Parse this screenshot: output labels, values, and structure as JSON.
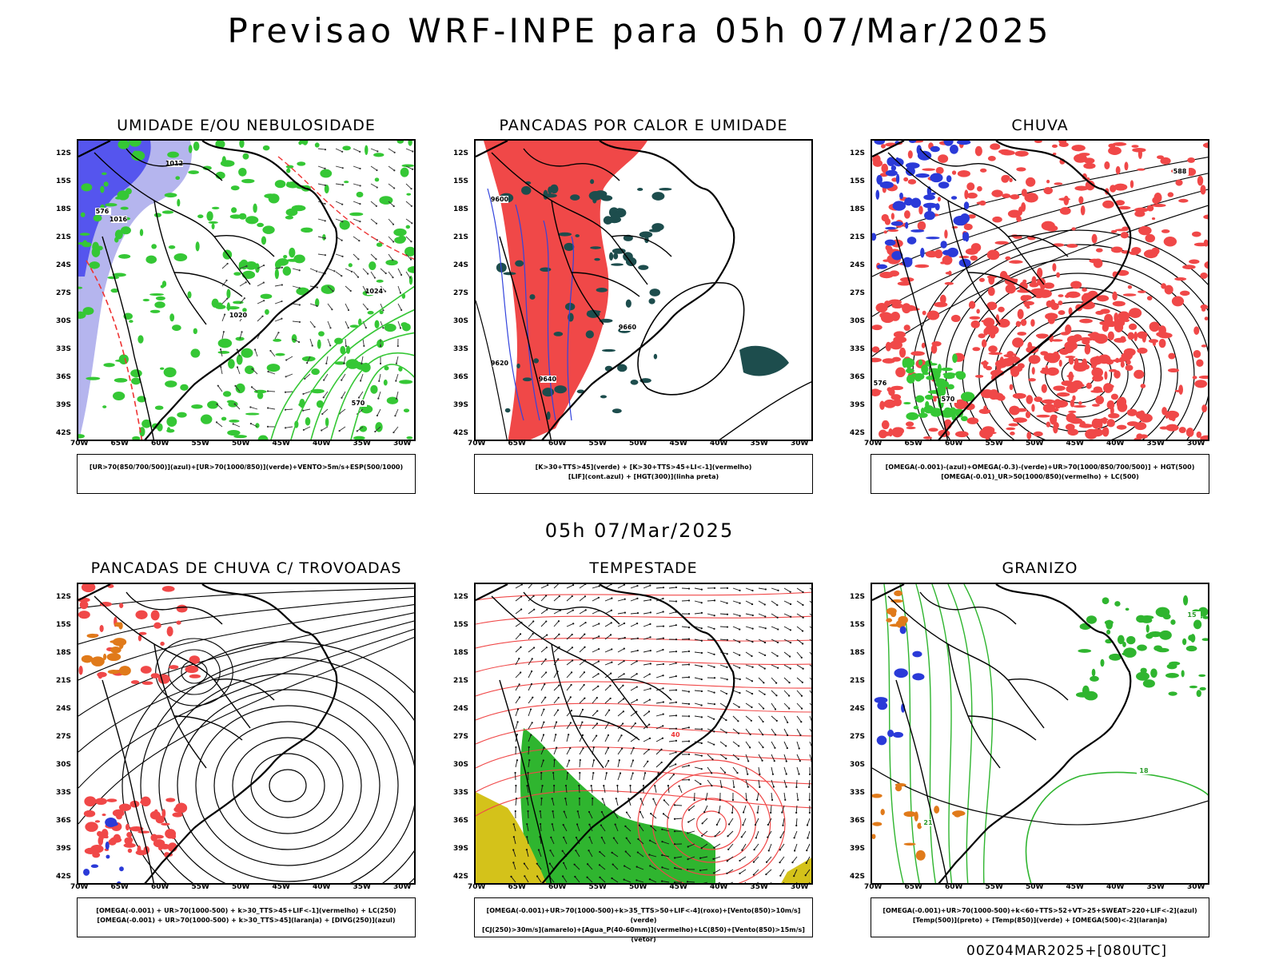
{
  "title": "Previsao WRF-INPE  para 05h 07/Mar/2025",
  "subtitle": "05h 07/Mar/2025",
  "footer": "00Z04MAR2025+[080UTC]",
  "axes": {
    "lat_labels": [
      "12S",
      "15S",
      "18S",
      "21S",
      "24S",
      "27S",
      "30S",
      "33S",
      "36S",
      "39S",
      "42S"
    ],
    "lon_labels": [
      "70W",
      "65W",
      "60W",
      "55W",
      "50W",
      "45W",
      "40W",
      "35W",
      "30W"
    ]
  },
  "panels": [
    {
      "title": "UMIDADE E/OU NEBULOSIDADE",
      "legend": [
        "[UR>70(850/700/500)](azul)+[UR>70(1000/850)](verde)+VENTO>5m/s+ESP(500/1000)"
      ],
      "fills": [
        "#5555ee",
        "#35c735"
      ],
      "contour_labels": [
        "1012",
        "1016",
        "1020",
        "1024",
        "576",
        "570"
      ]
    },
    {
      "title": "PANCADAS POR CALOR E UMIDADE",
      "legend": [
        "[K>30+TTS>45](verde) + [K>30+TTS>45+LI<-1](vermelho)",
        "[LIF](cont.azul) + [HGT(300)](linha preta)"
      ],
      "fills": [
        "#f04848",
        "#1d4d4d"
      ],
      "contour_labels": [
        "9600",
        "9620",
        "9640",
        "9660"
      ]
    },
    {
      "title": "CHUVA",
      "legend": [
        "[OMEGA(-0.001)-(azul)+OMEGA(-0.3)-(verde)+UR>70(1000/850/700/500)] + HGT(500)",
        "[OMEGA(-0.01)_UR>50(1000/850)(vermelho) + LC(500)"
      ],
      "fills": [
        "#f04848",
        "#35c735",
        "#2a3ad8"
      ],
      "contour_labels": [
        "588",
        "576",
        "570"
      ]
    },
    {
      "title": "PANCADAS DE CHUVA C/ TROVOADAS",
      "legend": [
        "[OMEGA(-0.001) + UR>70(1000-500) + k>30_TTS>45+LIF<-1](vermelho) + LC(250)",
        "[OMEGA(-0.001) + UR>70(1000-500) + k>30_TTS>45](laranja) + [DIVG(250)](azul)"
      ],
      "fills": [
        "#f04848",
        "#e07a1a",
        "#2a3ad8"
      ],
      "contour_labels": []
    },
    {
      "title": "TEMPESTADE",
      "legend": [
        "[OMEGA(-0.001)+UR>70(1000-500)+k>35_TTS>50+LIF<-4](roxo)+[Vento(850)>10m/s](verde)",
        "[CJ(250)>30m/s](amarelo)+[Agua_P(40-60mm)](vermelho)+LC(850)+[Vento(850)>15m/s](vetor)"
      ],
      "fills": [
        "#2fb52f",
        "#d4c21a",
        "#f04848"
      ],
      "contour_labels": [
        "40"
      ]
    },
    {
      "title": "GRANIZO",
      "legend": [
        "[OMEGA(-0.001)+UR>70(1000-500)+k<60+TTS>52+VT>25+SWEAT>220+LIF<-2](azul)",
        "[Temp(500)](preto) + [Temp(850)](verde) + [OMEGA(500)<-2](laranja)"
      ],
      "fills": [
        "#2fb52f",
        "#e07a1a",
        "#2a3ad8"
      ],
      "contour_labels": [
        "15",
        "18",
        "21"
      ]
    }
  ]
}
